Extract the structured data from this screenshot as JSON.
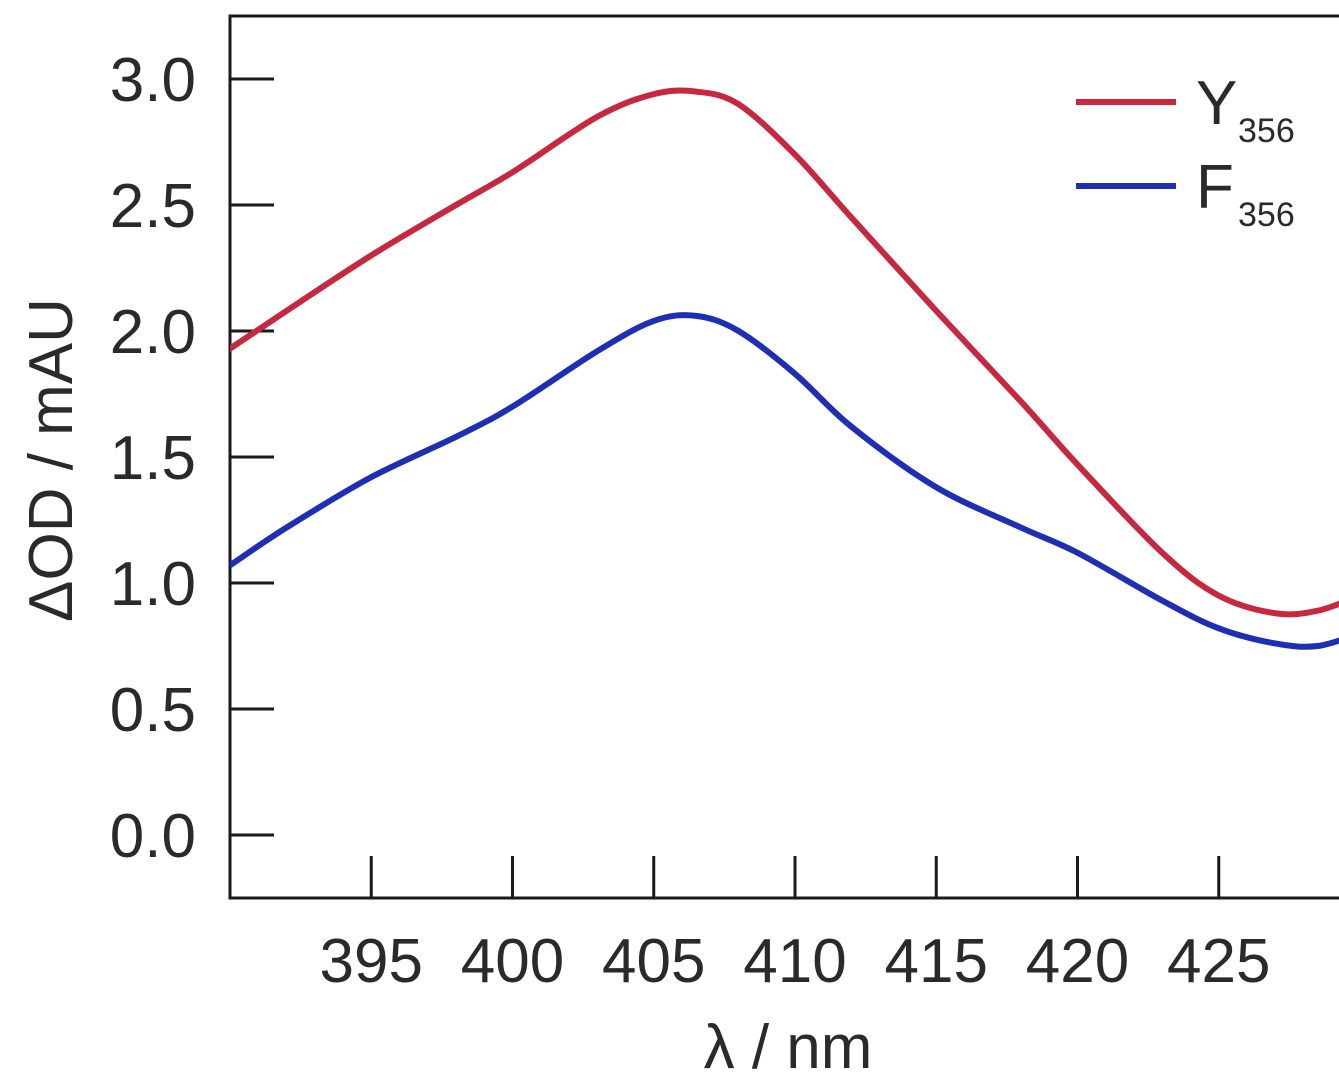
{
  "chart_data": {
    "type": "line",
    "xlabel": "λ / nm",
    "ylabel": "ΔOD / mAU",
    "xlim": [
      390,
      430
    ],
    "ylim": [
      -0.25,
      3.25
    ],
    "x_ticks": [
      395,
      400,
      405,
      410,
      415,
      420,
      425
    ],
    "y_ticks": [
      0.0,
      0.5,
      1.0,
      1.5,
      2.0,
      2.5,
      3.0
    ],
    "x_tick_labels": [
      "395",
      "400",
      "405",
      "410",
      "415",
      "420",
      "425"
    ],
    "y_tick_labels": [
      "0.0",
      "0.5",
      "1.0",
      "1.5",
      "2.0",
      "2.5",
      "3.0"
    ],
    "grid": false,
    "legend_position": "top-right",
    "series": [
      {
        "name": "Y",
        "name_subscript": "356",
        "color": "#c8283f",
        "x": [
          390,
          392,
          395,
          398,
          400,
          403,
          405,
          406.5,
          408,
          410,
          412,
          415,
          418,
          420,
          423,
          425,
          427,
          428.5,
          430
        ],
        "y": [
          1.93,
          2.08,
          2.3,
          2.5,
          2.63,
          2.85,
          2.94,
          2.95,
          2.9,
          2.7,
          2.45,
          2.08,
          1.72,
          1.47,
          1.12,
          0.95,
          0.88,
          0.89,
          0.95
        ]
      },
      {
        "name": "F",
        "name_subscript": "356",
        "color": "#1e2fb5",
        "x": [
          390,
          392,
          395,
          398,
          400,
          403,
          405,
          406.5,
          408,
          410,
          412,
          415,
          418,
          420,
          423,
          425,
          427,
          428.5,
          430
        ],
        "y": [
          1.07,
          1.22,
          1.42,
          1.58,
          1.7,
          1.92,
          2.04,
          2.06,
          2.0,
          1.83,
          1.62,
          1.38,
          1.22,
          1.12,
          0.93,
          0.82,
          0.76,
          0.75,
          0.8
        ]
      }
    ]
  }
}
